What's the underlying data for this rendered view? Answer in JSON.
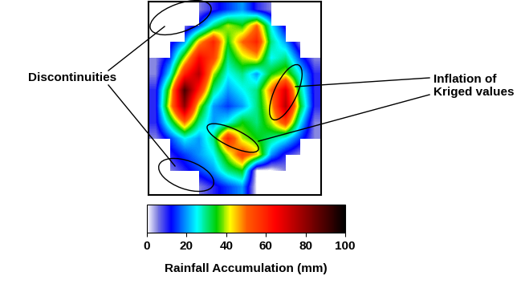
{
  "chart_data": {
    "type": "heatmap",
    "cells": [
      [
        null,
        null,
        null,
        5,
        10,
        15,
        20,
        10,
        5,
        null,
        null,
        null
      ],
      [
        null,
        null,
        5,
        15,
        30,
        40,
        35,
        50,
        25,
        10,
        null,
        null
      ],
      [
        null,
        10,
        20,
        45,
        60,
        35,
        50,
        60,
        30,
        20,
        5,
        null
      ],
      [
        5,
        15,
        40,
        65,
        55,
        30,
        40,
        45,
        25,
        30,
        15,
        5
      ],
      [
        5,
        25,
        60,
        75,
        40,
        25,
        30,
        20,
        35,
        40,
        25,
        10
      ],
      [
        10,
        40,
        90,
        60,
        30,
        20,
        25,
        30,
        50,
        70,
        30,
        10
      ],
      [
        10,
        45,
        80,
        40,
        20,
        15,
        20,
        30,
        45,
        75,
        35,
        10
      ],
      [
        10,
        30,
        50,
        30,
        20,
        25,
        35,
        30,
        40,
        55,
        25,
        5
      ],
      [
        5,
        15,
        25,
        20,
        30,
        60,
        40,
        35,
        30,
        25,
        15,
        5
      ],
      [
        null,
        10,
        15,
        20,
        25,
        40,
        55,
        45,
        20,
        10,
        5,
        null
      ],
      [
        null,
        5,
        10,
        15,
        20,
        30,
        35,
        0,
        0,
        5,
        null,
        null
      ],
      [
        null,
        null,
        null,
        5,
        10,
        15,
        20,
        0,
        null,
        null,
        null,
        null
      ]
    ],
    "tick_labels": false,
    "colorbar_range": [
      0,
      100
    ],
    "colorbar_ticks": [
      0,
      20,
      40,
      60,
      80,
      100
    ],
    "colorbar_label": "Rainfall Accumulation (mm)",
    "annotations": [
      "Discontinuities",
      "Inflation of\nKriged values"
    ]
  }
}
